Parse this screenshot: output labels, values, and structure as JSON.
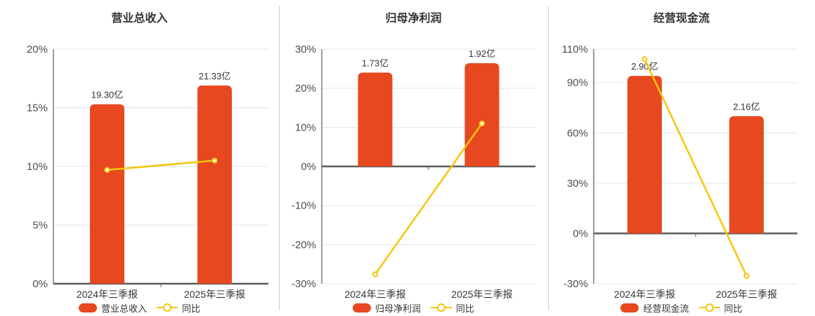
{
  "colors": {
    "bar": "#E8481F",
    "line": "#F5C60A",
    "grid": "#DFE4EF",
    "zero_axis": "#5B5B5B",
    "axis": "#62666D",
    "divider": "#CCCCCC",
    "tick_text": "#4D4D4D",
    "text": "#333333",
    "marker_fill": "#FFFFFF"
  },
  "chart_data": [
    {
      "type": "bar+line",
      "title": "营业总收入",
      "categories": [
        "2024年三季报",
        "2025年三季报"
      ],
      "bar_series": {
        "name": "营业总收入",
        "values": [
          "19.30亿",
          "21.33亿"
        ],
        "axis_percent": [
          15.3,
          16.9
        ]
      },
      "line_series": {
        "name": "同比",
        "values_percent": [
          9.7,
          10.5
        ]
      },
      "ylim": [
        0,
        20
      ],
      "yticks": [
        20,
        15,
        10,
        5,
        0
      ],
      "ytick_suffix": "%",
      "grid": true,
      "legend_position": "bottom"
    },
    {
      "type": "bar+line",
      "title": "归母净利润",
      "categories": [
        "2024年三季报",
        "2025年三季报"
      ],
      "bar_series": {
        "name": "归母净利润",
        "values": [
          "1.73亿",
          "1.92亿"
        ],
        "axis_percent": [
          24.0,
          26.4
        ]
      },
      "line_series": {
        "name": "同比",
        "values_percent": [
          -27.6,
          11.0
        ]
      },
      "ylim": [
        -30,
        30
      ],
      "yticks": [
        30,
        20,
        10,
        0,
        -10,
        -20,
        -30
      ],
      "ytick_suffix": "%",
      "grid": true,
      "legend_position": "bottom"
    },
    {
      "type": "bar+line",
      "title": "经营现金流",
      "categories": [
        "2024年三季报",
        "2025年三季报"
      ],
      "bar_series": {
        "name": "经营现金流",
        "values": [
          "2.90亿",
          "2.16亿"
        ],
        "axis_percent": [
          94.0,
          70.0
        ]
      },
      "line_series": {
        "name": "同比",
        "values_percent": [
          104.0,
          -25.3
        ]
      },
      "ylim": [
        -30,
        110
      ],
      "yticks": [
        110,
        90,
        60,
        30,
        0,
        -30
      ],
      "ytick_suffix": "%",
      "grid": true,
      "legend_position": "bottom"
    }
  ]
}
